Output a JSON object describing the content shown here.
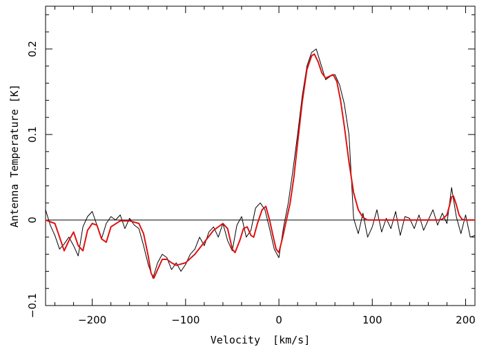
{
  "chart_data": {
    "type": "line",
    "title": "",
    "xlabel": "Velocity  [km/s]",
    "ylabel": "Antenna Temperature [K]",
    "xlim": [
      -250,
      210
    ],
    "ylim": [
      -0.1,
      0.25
    ],
    "x_ticks": [
      -200,
      -100,
      0,
      100,
      200
    ],
    "x_tick_labels": [
      "−200",
      "−100",
      "0",
      "100",
      "200"
    ],
    "y_ticks": [
      -0.1,
      0,
      0.1,
      0.2
    ],
    "y_tick_labels": [
      "−0.1",
      "0",
      "0.1",
      "0.2"
    ],
    "grid": false,
    "legend": false,
    "zero_line": 0,
    "series": [
      {
        "color": "#000000",
        "style": "noisy spectrum",
        "x": [
          -250,
          -245,
          -240,
          -235,
          -230,
          -225,
          -220,
          -215,
          -210,
          -205,
          -200,
          -195,
          -190,
          -185,
          -180,
          -175,
          -170,
          -165,
          -160,
          -155,
          -150,
          -145,
          -140,
          -135,
          -130,
          -125,
          -120,
          -115,
          -110,
          -105,
          -100,
          -95,
          -90,
          -85,
          -80,
          -75,
          -70,
          -65,
          -60,
          -55,
          -50,
          -45,
          -40,
          -35,
          -30,
          -25,
          -20,
          -15,
          -10,
          -5,
          0,
          5,
          10,
          15,
          20,
          25,
          30,
          35,
          40,
          45,
          50,
          55,
          60,
          65,
          70,
          75,
          80,
          85,
          90,
          95,
          100,
          105,
          110,
          115,
          120,
          125,
          130,
          135,
          140,
          145,
          150,
          155,
          160,
          165,
          170,
          175,
          180,
          185,
          190,
          195,
          200,
          205,
          210
        ],
        "y": [
          0.012,
          -0.006,
          -0.018,
          -0.034,
          -0.028,
          -0.02,
          -0.03,
          -0.042,
          -0.008,
          0.004,
          0.01,
          -0.006,
          -0.022,
          -0.004,
          0.004,
          0.0,
          0.006,
          -0.01,
          0.002,
          -0.006,
          -0.01,
          -0.03,
          -0.052,
          -0.068,
          -0.05,
          -0.04,
          -0.044,
          -0.058,
          -0.05,
          -0.06,
          -0.052,
          -0.04,
          -0.034,
          -0.02,
          -0.03,
          -0.014,
          -0.008,
          -0.02,
          -0.004,
          -0.024,
          -0.036,
          -0.006,
          0.004,
          -0.02,
          -0.012,
          0.014,
          0.02,
          0.012,
          -0.01,
          -0.034,
          -0.044,
          -0.008,
          0.02,
          0.058,
          0.1,
          0.145,
          0.18,
          0.196,
          0.2,
          0.182,
          0.164,
          0.168,
          0.17,
          0.158,
          0.136,
          0.1,
          0.002,
          -0.016,
          0.008,
          -0.02,
          -0.008,
          0.012,
          -0.014,
          0.002,
          -0.01,
          0.01,
          -0.018,
          0.004,
          0.002,
          -0.01,
          0.006,
          -0.012,
          0.0,
          0.012,
          -0.006,
          0.008,
          -0.004,
          0.038,
          0.004,
          -0.016,
          0.006,
          -0.02,
          -0.018
        ]
      },
      {
        "color": "#dd1111",
        "style": "smooth fit",
        "x": [
          -250,
          -240,
          -235,
          -230,
          -225,
          -220,
          -215,
          -210,
          -205,
          -200,
          -195,
          -190,
          -185,
          -180,
          -170,
          -160,
          -150,
          -145,
          -140,
          -137,
          -134,
          -130,
          -125,
          -120,
          -115,
          -110,
          -100,
          -90,
          -80,
          -70,
          -60,
          -55,
          -52,
          -50,
          -47,
          -42,
          -38,
          -34,
          -30,
          -27,
          -23,
          -18,
          -14,
          -10,
          -6,
          -3,
          0,
          4,
          8,
          12,
          16,
          20,
          25,
          30,
          35,
          38,
          42,
          46,
          50,
          54,
          58,
          62,
          66,
          70,
          75,
          80,
          85,
          90,
          95,
          100,
          110,
          120,
          130,
          140,
          150,
          160,
          170,
          175,
          180,
          183,
          185,
          187,
          190,
          193,
          196,
          200,
          210
        ],
        "y": [
          0.0,
          -0.004,
          -0.02,
          -0.036,
          -0.024,
          -0.014,
          -0.03,
          -0.036,
          -0.012,
          -0.004,
          -0.006,
          -0.022,
          -0.026,
          -0.008,
          -0.001,
          -0.001,
          -0.004,
          -0.016,
          -0.042,
          -0.062,
          -0.068,
          -0.058,
          -0.046,
          -0.046,
          -0.05,
          -0.053,
          -0.05,
          -0.04,
          -0.026,
          -0.012,
          -0.004,
          -0.01,
          -0.024,
          -0.034,
          -0.038,
          -0.024,
          -0.01,
          -0.008,
          -0.018,
          -0.02,
          -0.004,
          0.012,
          0.016,
          0.0,
          -0.02,
          -0.034,
          -0.038,
          -0.02,
          0.0,
          0.02,
          0.05,
          0.09,
          0.138,
          0.176,
          0.192,
          0.194,
          0.185,
          0.172,
          0.166,
          0.168,
          0.17,
          0.162,
          0.14,
          0.11,
          0.068,
          0.032,
          0.012,
          0.003,
          0.0,
          0.0,
          0.0,
          0.0,
          0.0,
          0.0,
          0.0,
          0.0,
          0.0,
          0.001,
          0.006,
          0.018,
          0.027,
          0.028,
          0.018,
          0.006,
          0.001,
          0.0,
          0.0
        ]
      }
    ]
  }
}
